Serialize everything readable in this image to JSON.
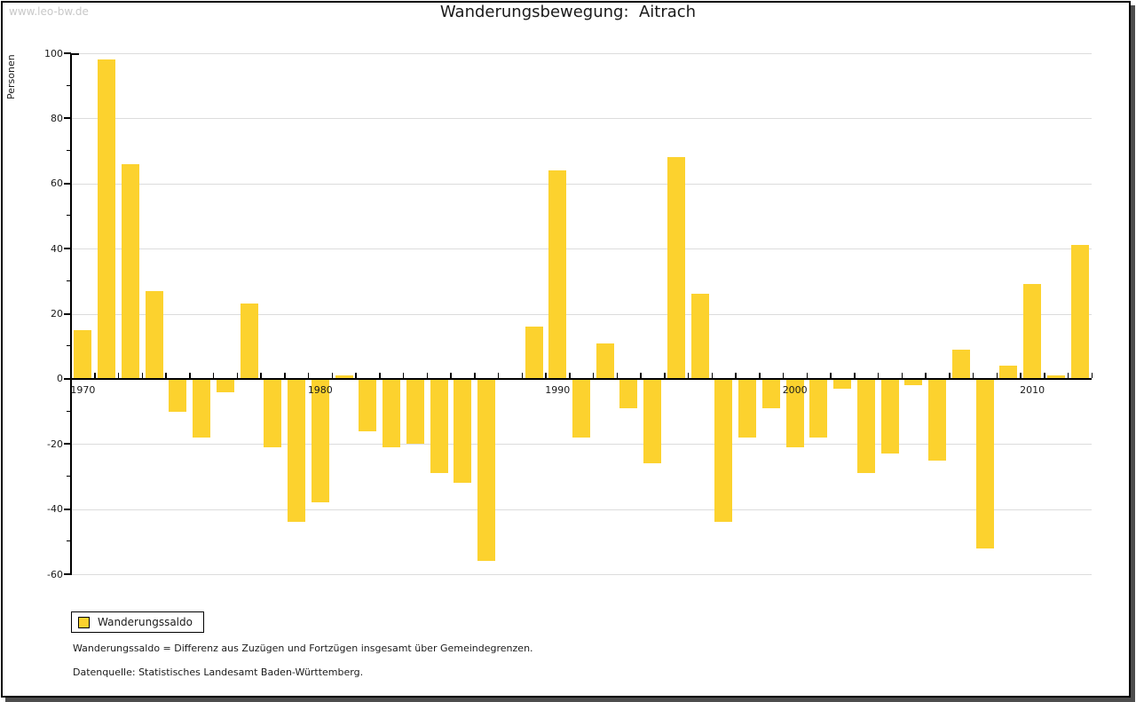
{
  "watermark": "www.leo-bw.de",
  "title": "Wanderungsbewegung:  Aitrach",
  "y_axis_label": "Personen",
  "legend": {
    "items": [
      {
        "label": "Wanderungssaldo",
        "color": "#fcd22e"
      }
    ]
  },
  "footnotes": [
    "Wanderungssaldo = Differenz aus Zuzügen und Fortzügen insgesamt über Gemeindegrenzen.",
    "Datenquelle: Statistisches Landesamt Baden-Württemberg."
  ],
  "colors": {
    "bar": "#fcd22e",
    "grid": "#dcdcdc",
    "axis": "#000000",
    "zero_line": "#000000",
    "text": "#1a1a1a",
    "watermark": "#c8c8c8",
    "frame_border": "#000000",
    "frame_shadow": "#4d4d4d"
  },
  "chart_data": {
    "type": "bar",
    "title": "Wanderungsbewegung: Aitrach",
    "xlabel": "",
    "ylabel": "Personen",
    "ylim": [
      -60,
      100
    ],
    "y_major_step": 20,
    "y_minor_step": 10,
    "grid": true,
    "legend_position": "bottom-left",
    "x_labeled_ticks": [
      1970,
      1980,
      1990,
      2000,
      2010
    ],
    "categories": [
      1970,
      1971,
      1972,
      1973,
      1974,
      1975,
      1976,
      1977,
      1978,
      1979,
      1980,
      1981,
      1982,
      1983,
      1984,
      1985,
      1986,
      1987,
      1988,
      1989,
      1990,
      1991,
      1992,
      1993,
      1994,
      1995,
      1996,
      1997,
      1998,
      1999,
      2000,
      2001,
      2002,
      2003,
      2004,
      2005,
      2006,
      2007,
      2008,
      2009,
      2010,
      2011,
      2012
    ],
    "series": [
      {
        "name": "Wanderungssaldo",
        "color": "#fcd22e",
        "values": [
          15,
          98,
          66,
          27,
          -10,
          -18,
          -4,
          23,
          -21,
          -44,
          -38,
          1,
          -16,
          -21,
          -20,
          -29,
          -32,
          -56,
          0,
          16,
          64,
          -18,
          11,
          -9,
          -26,
          68,
          26,
          -44,
          -18,
          -9,
          -21,
          -18,
          -3,
          -29,
          -23,
          -2,
          -25,
          9,
          -52,
          4,
          29,
          1,
          41
        ]
      }
    ]
  }
}
